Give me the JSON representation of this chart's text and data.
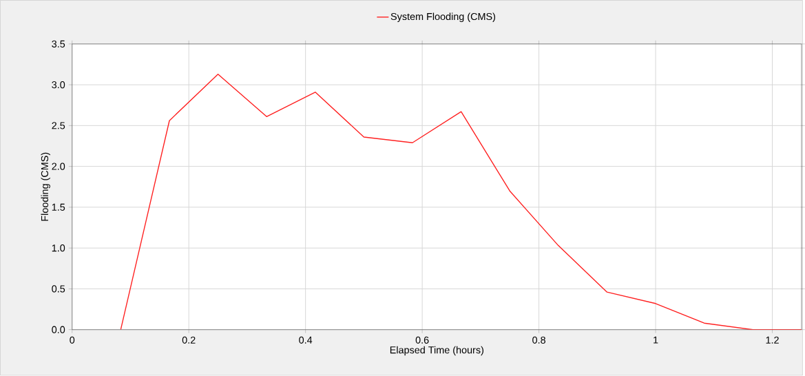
{
  "chart_data": {
    "type": "line",
    "xlabel": "Elapsed Time (hours)",
    "ylabel": "Flooding (CMS)",
    "x": [
      0.0833,
      0.1667,
      0.25,
      0.3333,
      0.4167,
      0.5,
      0.5833,
      0.6667,
      0.75,
      0.8333,
      0.9167,
      1.0,
      1.0833,
      1.1667,
      1.25
    ],
    "series": [
      {
        "name": "System Flooding (CMS)",
        "color": "#ff2020",
        "values": [
          0.0,
          2.56,
          3.13,
          2.61,
          2.91,
          2.36,
          2.29,
          2.67,
          1.7,
          1.03,
          0.46,
          0.32,
          0.08,
          0.0,
          0.0
        ]
      }
    ],
    "xlim": [
      0,
      1.25
    ],
    "ylim": [
      0,
      3.5
    ],
    "xticks": [
      0,
      0.2,
      0.4,
      0.6,
      0.8,
      1,
      1.2
    ],
    "yticks": [
      {
        "value": 0,
        "label": "0.0"
      },
      0.5,
      {
        "value": 1,
        "label": "1.0"
      },
      1.5,
      {
        "value": 2,
        "label": "2.0"
      },
      2.5,
      {
        "value": 3,
        "label": "3.0"
      },
      3.5
    ],
    "grid": true,
    "legend": "top",
    "marker": "none",
    "line_style": "solid"
  }
}
